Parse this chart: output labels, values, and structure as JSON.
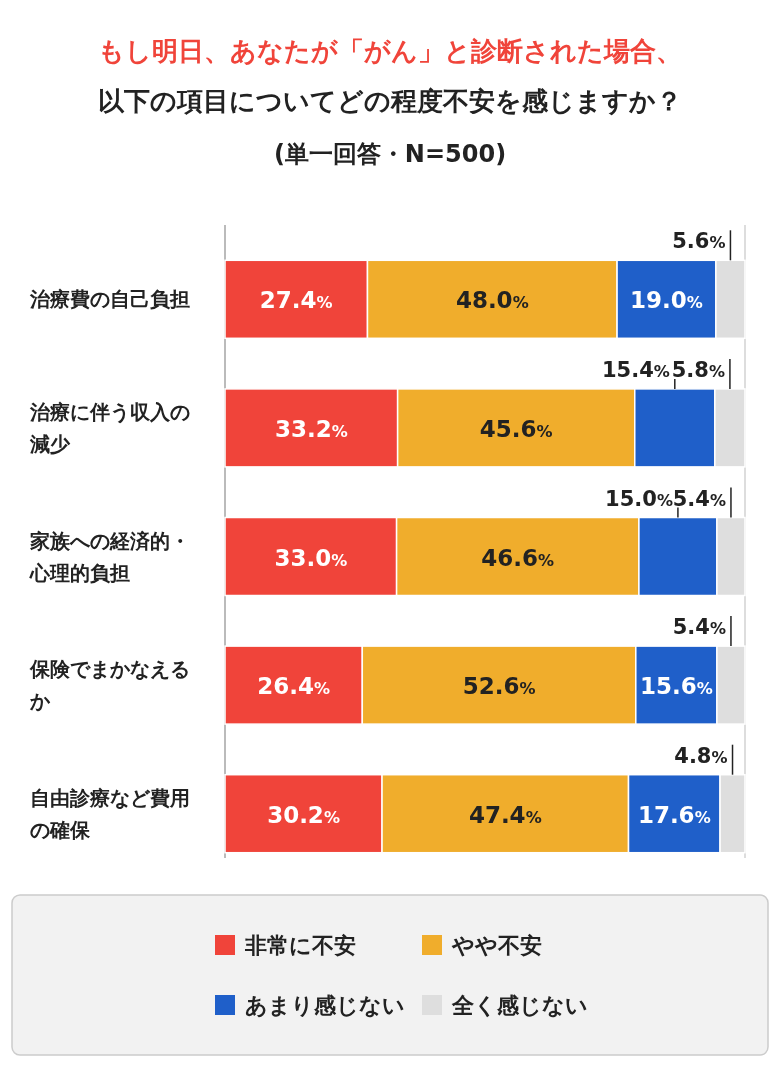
{
  "chart_data": {
    "type": "bar",
    "orientation": "horizontal",
    "stacked": true,
    "title": "もし明日、あなたが「がん」と診断された場合、",
    "subtitle": "以下の項目についてどの程度不安を感じますか？",
    "annotations": [
      "(単一回答・N=500)"
    ],
    "categories": [
      "治療費の自己負担",
      "治療に伴う収入の減少",
      "家族への経済的・心理的負担",
      "保険でまかなえるか",
      "自由診療など費用の確保"
    ],
    "xlim": [
      0,
      100
    ],
    "legend": "bottom",
    "series": [
      {
        "name": "非常に不安",
        "color": "#f0443a",
        "values": [
          27.4,
          33.2,
          33.0,
          26.4,
          30.2
        ],
        "value_labels": [
          "27.4%",
          "33.2%",
          "33.0%",
          "26.4%",
          "30.2%"
        ]
      },
      {
        "name": "やや不安",
        "color": "#f0ad2c",
        "values": [
          48.0,
          45.6,
          46.6,
          52.6,
          47.4
        ],
        "value_labels": [
          "48.0%",
          "45.6%",
          "46.6%",
          "52.6%",
          "47.4%"
        ]
      },
      {
        "name": "あまり感じない",
        "color": "#1f5fc9",
        "values": [
          19.0,
          15.4,
          15.0,
          15.6,
          17.6
        ],
        "value_labels": [
          "19.0%",
          "15.4%",
          "15.0%",
          "15.6%",
          "17.6%"
        ]
      },
      {
        "name": "全く感じない",
        "color": "#dedede",
        "values": [
          5.6,
          5.8,
          5.4,
          5.4,
          4.8
        ],
        "value_labels": [
          "5.6%",
          "5.8%",
          "5.4%",
          "5.4%",
          "4.8%"
        ]
      }
    ]
  }
}
